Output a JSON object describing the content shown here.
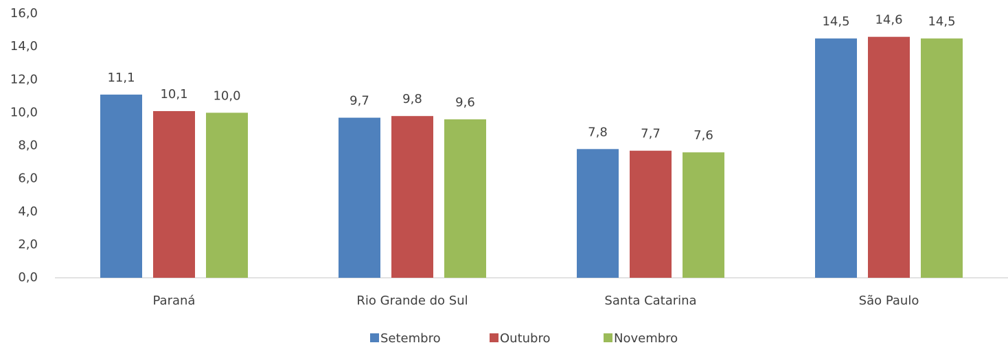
{
  "chart_data": {
    "type": "bar",
    "categories": [
      "Paraná",
      "Rio Grande do Sul",
      "Santa Catarina",
      "São Paulo"
    ],
    "series": [
      {
        "name": "Setembro",
        "color": "#4f81bd",
        "values": [
          11.1,
          9.7,
          7.8,
          14.5
        ],
        "value_labels": [
          "11,1",
          "9,7",
          "7,8",
          "14,5"
        ]
      },
      {
        "name": "Outubro",
        "color": "#c0504d",
        "values": [
          10.1,
          9.8,
          7.7,
          14.6
        ],
        "value_labels": [
          "10,1",
          "9,8",
          "7,7",
          "14,6"
        ]
      },
      {
        "name": "Novembro",
        "color": "#9bbb59",
        "values": [
          10.0,
          9.6,
          7.6,
          14.5
        ],
        "value_labels": [
          "10,0",
          "9,6",
          "7,6",
          "14,5"
        ]
      }
    ],
    "ylim": [
      0,
      16
    ],
    "yticks": [
      {
        "value": 0,
        "label": "0,0"
      },
      {
        "value": 2,
        "label": "2,0"
      },
      {
        "value": 4,
        "label": "4,0"
      },
      {
        "value": 6,
        "label": "6,0"
      },
      {
        "value": 8,
        "label": "8,0"
      },
      {
        "value": 10,
        "label": "10,0"
      },
      {
        "value": 12,
        "label": "12,0"
      },
      {
        "value": 14,
        "label": "14,0"
      },
      {
        "value": 16,
        "label": "16,0"
      }
    ],
    "grid": false,
    "legend": "bottom"
  }
}
